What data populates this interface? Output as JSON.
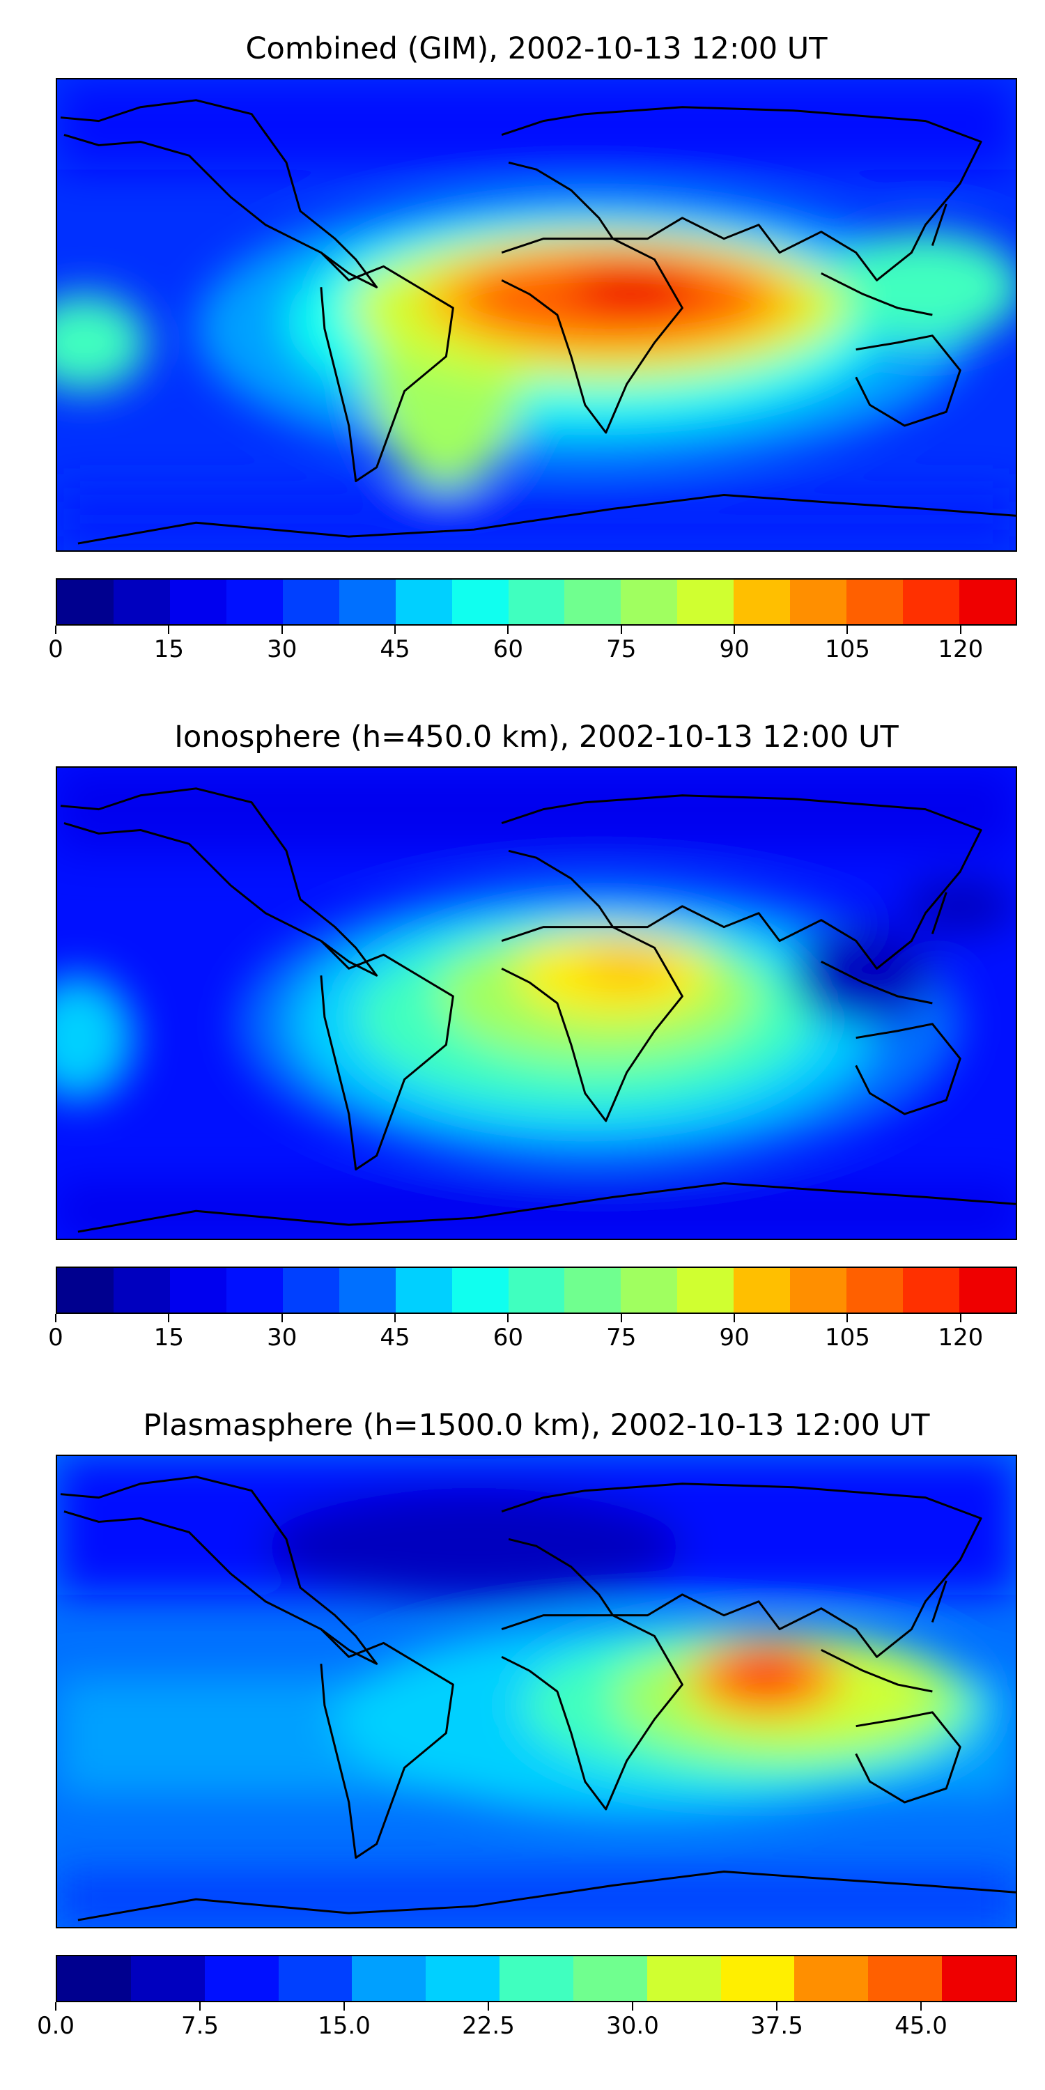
{
  "panels": [
    {
      "title": "Combined (GIM), 2002-10-13 12:00 UT",
      "colorbar": {
        "min": 0,
        "max": 127.5,
        "step": 15,
        "ticks": [
          "0",
          "15",
          "30",
          "45",
          "60",
          "75",
          "90",
          "105",
          "120"
        ],
        "tick_values": [
          0,
          15,
          30,
          45,
          60,
          75,
          90,
          105,
          120
        ]
      }
    },
    {
      "title": "Ionosphere  (h=450.0 km), 2002-10-13 12:00 UT",
      "colorbar": {
        "min": 0,
        "max": 127.5,
        "step": 15,
        "ticks": [
          "0",
          "15",
          "30",
          "45",
          "60",
          "75",
          "90",
          "105",
          "120"
        ],
        "tick_values": [
          0,
          15,
          30,
          45,
          60,
          75,
          90,
          105,
          120
        ]
      }
    },
    {
      "title": "Plasmasphere (h=1500.0 km), 2002-10-13 12:00 UT",
      "colorbar": {
        "min": 0,
        "max": 50,
        "step": 7.5,
        "ticks": [
          "0.0",
          "7.5",
          "15.0",
          "22.5",
          "30.0",
          "37.5",
          "45.0"
        ],
        "tick_values": [
          0,
          7.5,
          15,
          22.5,
          30,
          37.5,
          45
        ]
      }
    }
  ],
  "colormap": [
    "#00008f",
    "#0000bf",
    "#0000ef",
    "#0010ff",
    "#0040ff",
    "#0070ff",
    "#00a0ff",
    "#00d0ff",
    "#10ffef",
    "#40ffbf",
    "#70ff8f",
    "#a0ff60",
    "#d0ff30",
    "#ffef00",
    "#ffbf00",
    "#ff8f00",
    "#ff6000",
    "#ff3000",
    "#ef0000",
    "#bf0000"
  ],
  "coastline_color": "#000000"
}
